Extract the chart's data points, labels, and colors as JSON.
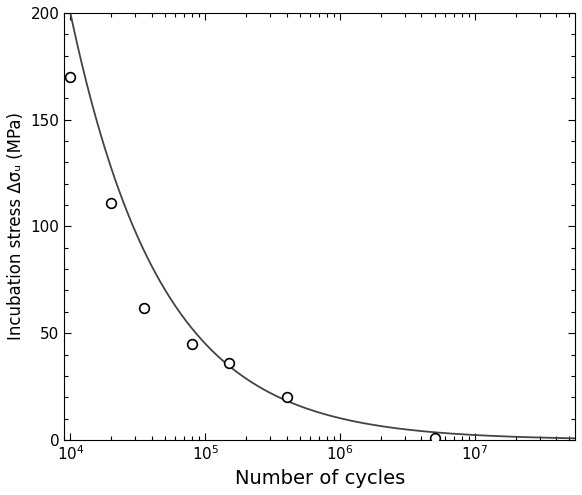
{
  "scatter_x": [
    10000,
    20000,
    35000,
    80000,
    150000,
    400000,
    5000000
  ],
  "scatter_y": [
    170,
    111,
    62,
    45,
    36,
    20,
    1
  ],
  "curve_A": 77400,
  "curve_b": -0.647,
  "xmin": 9000,
  "xmax": 55000000.0,
  "ymin": 0,
  "ymax": 200,
  "xlabel": "Number of cycles",
  "ylabel": "Incubation stress Δσᵤ (MPa)",
  "marker_size": 7,
  "marker_color": "white",
  "marker_edge_color": "black",
  "marker_edge_width": 1.2,
  "line_color": "#444444",
  "line_width": 1.3,
  "yticks": [
    0,
    50,
    100,
    150,
    200
  ],
  "background_color": "white",
  "xlabel_fontsize": 14,
  "ylabel_fontsize": 12
}
